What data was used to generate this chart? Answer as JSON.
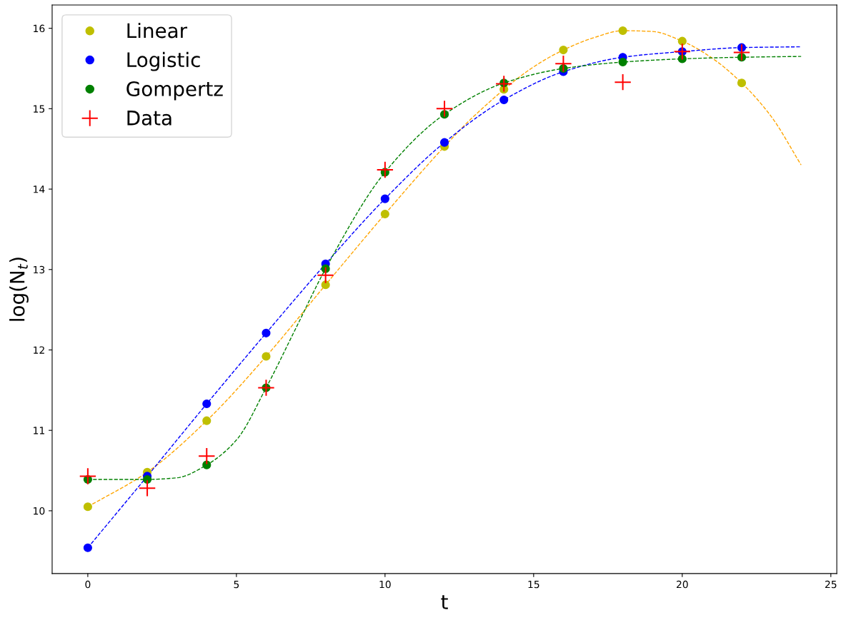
{
  "chart_data": {
    "type": "scatter",
    "xlabel": "t",
    "ylabel": "log(N$_{t}$)",
    "xlim": [
      -1.2,
      25.2
    ],
    "xticks": [
      0,
      5,
      10,
      15,
      20,
      25
    ],
    "ylim": [
      9.22,
      16.29
    ],
    "yticks": [
      10,
      11,
      12,
      13,
      14,
      15,
      16
    ],
    "legend": "top left",
    "series": [
      {
        "type": "line",
        "color": "#ffa500",
        "line_style": "dashed",
        "marker": "none",
        "x": [
          0,
          2,
          4,
          6,
          8,
          10,
          12,
          13,
          15,
          16,
          17,
          18,
          19,
          20,
          21,
          22,
          23,
          24
        ],
        "values": [
          10.05,
          10.48,
          11.12,
          11.92,
          12.81,
          13.69,
          14.53,
          14.91,
          15.52,
          15.73,
          15.88,
          15.97,
          15.96,
          15.84,
          15.63,
          15.32,
          14.9,
          14.3
        ]
      },
      {
        "type": "line",
        "color": "#0000ff",
        "line_style": "dashed",
        "marker": "none",
        "x": [
          0,
          2,
          4,
          6,
          8,
          10,
          12,
          14,
          16,
          18,
          20,
          22,
          24
        ],
        "values": [
          9.54,
          10.43,
          11.33,
          12.21,
          13.07,
          13.88,
          14.58,
          15.11,
          15.46,
          15.64,
          15.71,
          15.76,
          15.77
        ]
      },
      {
        "type": "line",
        "color": "#008000",
        "line_style": "dashed",
        "marker": "none",
        "x": [
          0,
          1,
          2,
          3,
          4,
          5,
          6,
          7,
          8,
          10,
          12,
          14,
          16,
          18,
          20,
          22,
          24
        ],
        "values": [
          10.39,
          10.39,
          10.39,
          10.41,
          10.57,
          10.88,
          11.53,
          12.27,
          13.01,
          14.21,
          14.93,
          15.32,
          15.5,
          15.58,
          15.62,
          15.64,
          15.65
        ]
      },
      {
        "name": "Linear",
        "color": "#bfbf00",
        "marker": "circle",
        "x": [
          0,
          2,
          4,
          6,
          8,
          10,
          12,
          14,
          16,
          18,
          20,
          22
        ],
        "values": [
          10.05,
          10.48,
          11.12,
          11.92,
          12.81,
          13.69,
          14.53,
          15.24,
          15.73,
          15.97,
          15.84,
          15.32
        ]
      },
      {
        "name": "Logistic",
        "color": "#0000ff",
        "marker": "circle",
        "x": [
          0,
          2,
          4,
          6,
          8,
          10,
          12,
          14,
          16,
          18,
          20,
          22
        ],
        "values": [
          9.54,
          10.43,
          11.33,
          12.21,
          13.07,
          13.88,
          14.58,
          15.11,
          15.46,
          15.64,
          15.71,
          15.76
        ]
      },
      {
        "name": "Gompertz",
        "color": "#008000",
        "marker": "circle",
        "x": [
          0,
          2,
          4,
          6,
          8,
          10,
          12,
          14,
          16,
          18,
          20,
          22
        ],
        "values": [
          10.39,
          10.39,
          10.57,
          11.53,
          13.01,
          14.21,
          14.93,
          15.32,
          15.5,
          15.58,
          15.62,
          15.64
        ]
      },
      {
        "name": "Data",
        "color": "#ff0000",
        "marker": "cross",
        "x": [
          0,
          2,
          4,
          6,
          8,
          10,
          12,
          14,
          16,
          18,
          20,
          22
        ],
        "values": [
          10.43,
          10.28,
          10.68,
          11.53,
          12.93,
          14.24,
          15.0,
          15.31,
          15.56,
          15.33,
          15.71,
          15.7
        ]
      }
    ]
  }
}
